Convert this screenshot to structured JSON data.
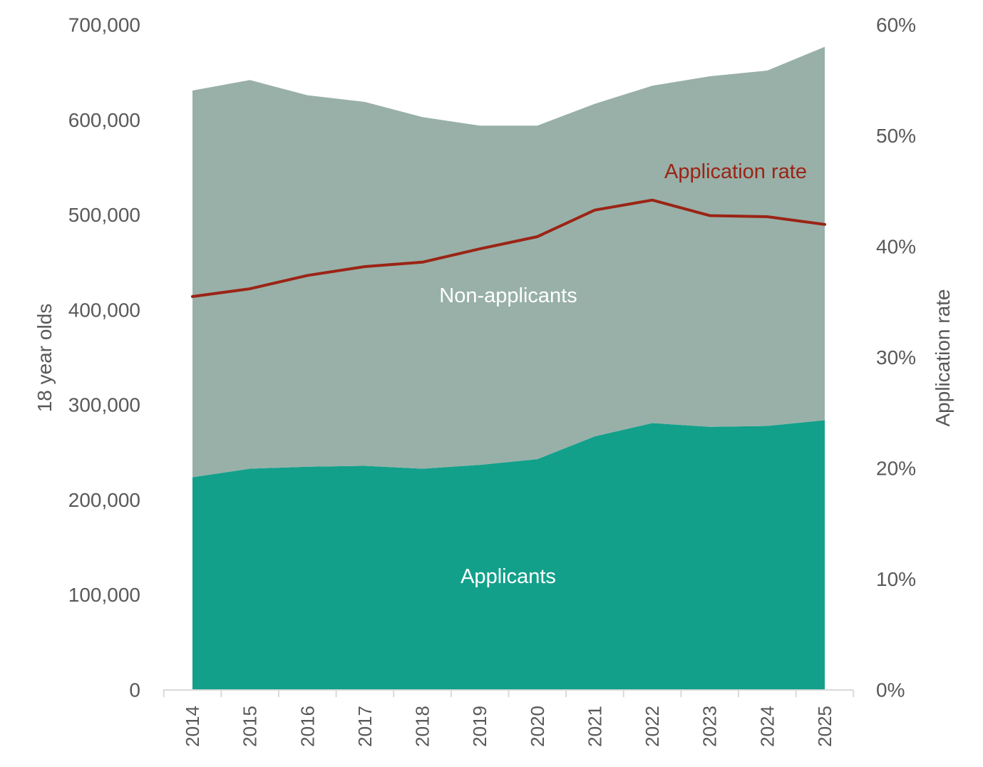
{
  "chart_data": {
    "type": "area",
    "stacked": true,
    "categories": [
      "2014",
      "2015",
      "2016",
      "2017",
      "2018",
      "2019",
      "2020",
      "2021",
      "2022",
      "2023",
      "2024",
      "2025"
    ],
    "series": [
      {
        "name": "Applicants",
        "axis": "left",
        "kind": "area",
        "color": "#13a08b",
        "values": [
          224000,
          233000,
          235000,
          236000,
          233000,
          237000,
          243000,
          267000,
          281000,
          277000,
          278000,
          284000
        ]
      },
      {
        "name": "Non-applicants",
        "axis": "left",
        "kind": "area",
        "color": "#98b0a8",
        "values": [
          407000,
          409000,
          391000,
          383000,
          370000,
          357000,
          351000,
          350000,
          355000,
          369000,
          374000,
          393000
        ]
      },
      {
        "name": "Application rate",
        "axis": "right",
        "kind": "line",
        "color": "#9b2415",
        "values": [
          0.355,
          0.362,
          0.374,
          0.382,
          0.386,
          0.398,
          0.409,
          0.433,
          0.442,
          0.428,
          0.427,
          0.42
        ]
      }
    ],
    "left_axis": {
      "label": "18 year olds",
      "ylim": [
        0,
        700000
      ],
      "ticks": [
        "0",
        "100,000",
        "200,000",
        "300,000",
        "400,000",
        "500,000",
        "600,000",
        "700,000"
      ]
    },
    "right_axis": {
      "label": "Application rate",
      "ylim": [
        0,
        0.6
      ],
      "ticks": [
        "0%",
        "10%",
        "20%",
        "30%",
        "40%",
        "50%",
        "60%"
      ]
    },
    "annotations": {
      "applicants": "Applicants",
      "non_applicants": "Non-applicants",
      "application_rate": "Application rate"
    },
    "grid": false,
    "legend": "none"
  }
}
